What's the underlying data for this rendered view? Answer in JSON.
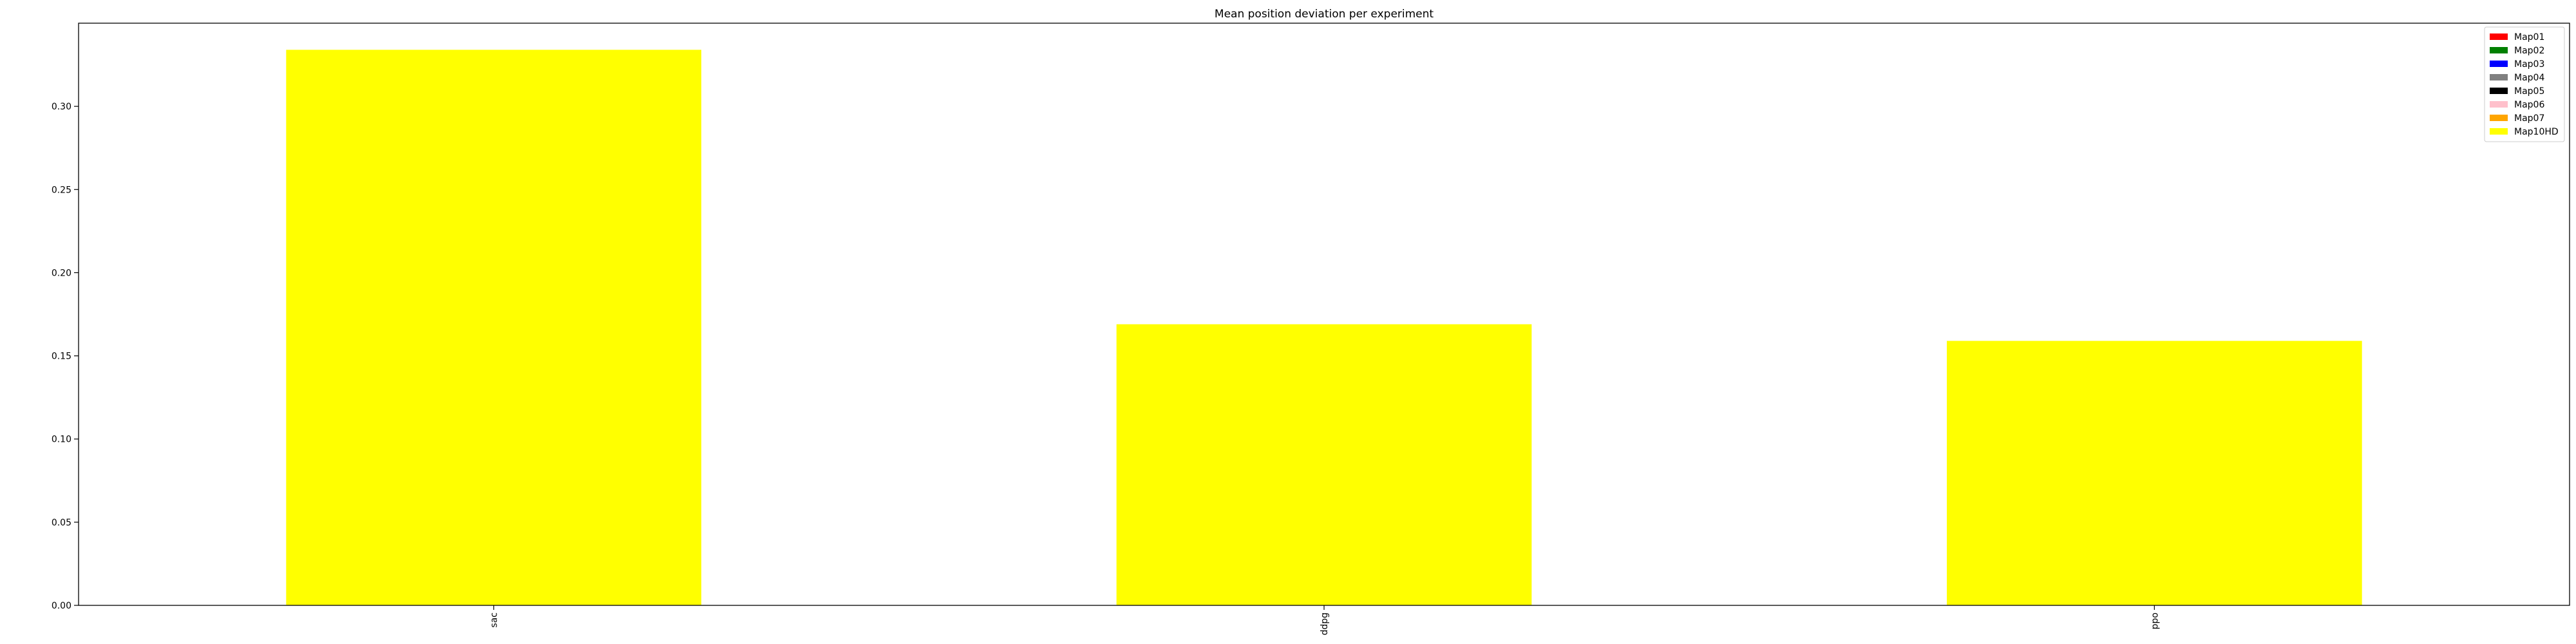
{
  "chart_data": {
    "type": "bar",
    "title": "Mean position deviation per experiment",
    "xlabel": "",
    "ylabel": "",
    "categories": [
      "sac",
      "ddpg",
      "ppo"
    ],
    "series": [
      {
        "name": "Map01",
        "color": "#ff0000",
        "values": [
          0,
          0,
          0
        ]
      },
      {
        "name": "Map02",
        "color": "#008000",
        "values": [
          0,
          0,
          0
        ]
      },
      {
        "name": "Map03",
        "color": "#0000ff",
        "values": [
          0,
          0,
          0
        ]
      },
      {
        "name": "Map04",
        "color": "#808080",
        "values": [
          0,
          0,
          0
        ]
      },
      {
        "name": "Map05",
        "color": "#000000",
        "values": [
          0,
          0,
          0
        ]
      },
      {
        "name": "Map06",
        "color": "#ffc0cb",
        "values": [
          0,
          0,
          0
        ]
      },
      {
        "name": "Map07",
        "color": "#ffa500",
        "values": [
          0,
          0,
          0
        ]
      },
      {
        "name": "Map10HD",
        "color": "#ffff00",
        "values": [
          0.334,
          0.169,
          0.159
        ]
      }
    ],
    "yticks": [
      "0.00",
      "0.05",
      "0.10",
      "0.15",
      "0.20",
      "0.25",
      "0.30"
    ],
    "ylim": [
      0,
      0.35
    ],
    "grid": false,
    "legend_position": "top-right",
    "x_tick_rotation": "vertical"
  }
}
